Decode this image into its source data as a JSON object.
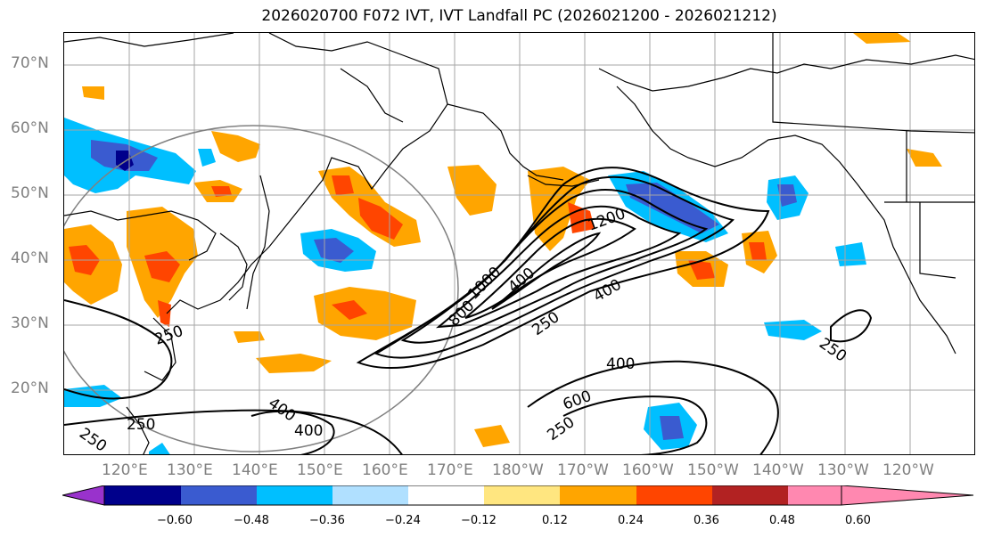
{
  "title": "2026020700 F072 IVT, IVT Landfall PC (2026021200 - 2026021212)",
  "lat_labels": [
    "70°N",
    "60°N",
    "50°N",
    "40°N",
    "30°N",
    "20°N"
  ],
  "lon_labels": [
    "120°E",
    "130°E",
    "140°E",
    "150°E",
    "160°E",
    "170°E",
    "180°W",
    "170°W",
    "160°W",
    "150°W",
    "140°W",
    "130°W",
    "120°W"
  ],
  "contour_labels": [
    "1200",
    "400",
    "250",
    "1000",
    "800",
    "400",
    "250",
    "250",
    "400",
    "600",
    "250",
    "250",
    "400",
    "400",
    "250"
  ],
  "colorbar": {
    "ticks": [
      "−0.60",
      "−0.48",
      "−0.36",
      "−0.24",
      "−0.12",
      "0.12",
      "0.24",
      "0.36",
      "0.48",
      "0.60"
    ],
    "colors": [
      "#9932cc",
      "#00008b",
      "#3a5bd0",
      "#00bfff",
      "#b0e0ff",
      "#ffffff",
      "#ffe680",
      "#ffa500",
      "#ff4500",
      "#b22222",
      "#ff88b0"
    ]
  },
  "chart_data": {
    "type": "map",
    "fields": [
      "IVT contours",
      "IVT Landfall PC shading"
    ],
    "contour_levels": [
      250,
      400,
      600,
      800,
      1000,
      1200
    ],
    "shading_levels": [
      -0.6,
      -0.48,
      -0.36,
      -0.24,
      -0.12,
      0.12,
      0.24,
      0.36,
      0.48,
      0.6
    ],
    "lat_range": [
      "10°N",
      "75°N"
    ],
    "lon_range": [
      "110°E",
      "115°W"
    ],
    "grid": true
  }
}
